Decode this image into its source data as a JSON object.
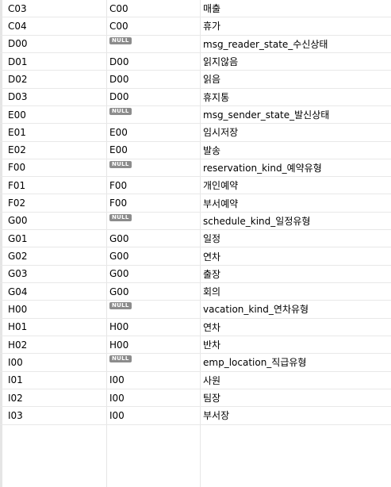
{
  "null_label": "NULL",
  "rows": [
    {
      "code": "C03",
      "parent": "C00",
      "name": "매출"
    },
    {
      "code": "C04",
      "parent": "C00",
      "name": "휴가"
    },
    {
      "code": "D00",
      "parent": null,
      "name": "msg_reader_state_수신상태"
    },
    {
      "code": "D01",
      "parent": "D00",
      "name": "읽지않음"
    },
    {
      "code": "D02",
      "parent": "D00",
      "name": "읽음"
    },
    {
      "code": "D03",
      "parent": "D00",
      "name": "휴지통"
    },
    {
      "code": "E00",
      "parent": null,
      "name": "msg_sender_state_발신상태"
    },
    {
      "code": "E01",
      "parent": "E00",
      "name": "임시저장"
    },
    {
      "code": "E02",
      "parent": "E00",
      "name": "발송"
    },
    {
      "code": "F00",
      "parent": null,
      "name": "reservation_kind_예약유형"
    },
    {
      "code": "F01",
      "parent": "F00",
      "name": "개인예약"
    },
    {
      "code": "F02",
      "parent": "F00",
      "name": "부서예약"
    },
    {
      "code": "G00",
      "parent": null,
      "name": "schedule_kind_일정유형"
    },
    {
      "code": "G01",
      "parent": "G00",
      "name": "일정"
    },
    {
      "code": "G02",
      "parent": "G00",
      "name": "연차"
    },
    {
      "code": "G03",
      "parent": "G00",
      "name": "출장"
    },
    {
      "code": "G04",
      "parent": "G00",
      "name": "회의"
    },
    {
      "code": "H00",
      "parent": null,
      "name": "vacation_kind_연차유형"
    },
    {
      "code": "H01",
      "parent": "H00",
      "name": "연차"
    },
    {
      "code": "H02",
      "parent": "H00",
      "name": "반차"
    },
    {
      "code": "I00",
      "parent": null,
      "name": "emp_location_직급유형"
    },
    {
      "code": "I01",
      "parent": "I00",
      "name": "사원"
    },
    {
      "code": "I02",
      "parent": "I00",
      "name": "팀장"
    },
    {
      "code": "I03",
      "parent": "I00",
      "name": "부서장"
    }
  ],
  "colors": {
    "selected_row": "#cfe3f7",
    "null_badge": "#8c8c8c",
    "gridline": "#e8e8e8"
  }
}
